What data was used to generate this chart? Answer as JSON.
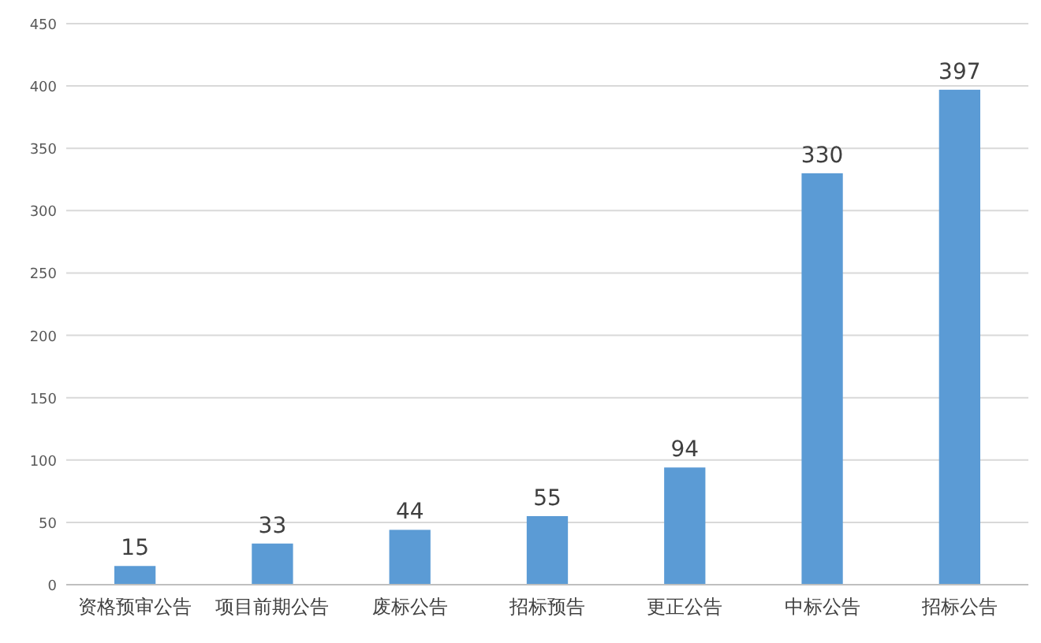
{
  "chart_data": {
    "type": "bar",
    "categories": [
      "资格预审公告",
      "项目前期公告",
      "废标公告",
      "招标预告",
      "更正公告",
      "中标公告",
      "招标公告"
    ],
    "values": [
      15,
      33,
      44,
      55,
      94,
      330,
      397
    ],
    "color": "#5b9bd5",
    "ylim": [
      0,
      450
    ],
    "yticks": [
      0,
      50,
      100,
      150,
      200,
      250,
      300,
      350,
      400,
      450
    ],
    "grid": "y",
    "data_labels": true
  }
}
